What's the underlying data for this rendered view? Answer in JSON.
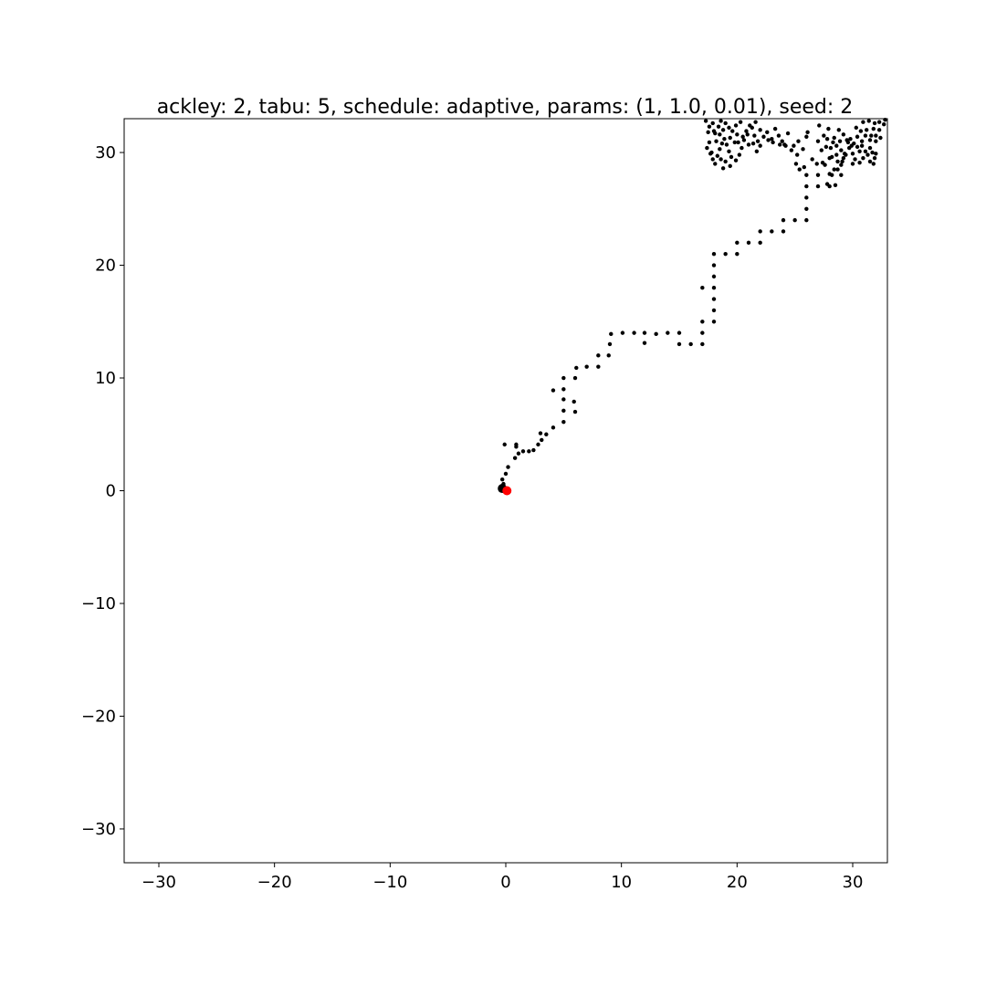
{
  "chart_data": {
    "type": "scatter",
    "title": "ackley: 2, tabu: 5, schedule: adaptive, params: (1, 1.0, 0.01), seed: 2",
    "xlabel": "",
    "ylabel": "",
    "xlim": [
      -33,
      33
    ],
    "ylim": [
      -33,
      33
    ],
    "grid": false,
    "x_ticks": [
      -30,
      -20,
      -10,
      0,
      10,
      20,
      30
    ],
    "y_ticks": [
      -30,
      -20,
      -10,
      0,
      10,
      20,
      30
    ],
    "x_tick_labels": [
      "−30",
      "−20",
      "−10",
      "0",
      "10",
      "20",
      "30"
    ],
    "y_tick_labels": [
      "−30",
      "−20",
      "−10",
      "0",
      "10",
      "20",
      "30"
    ],
    "colors": {
      "path": "#000000",
      "start": "#000000",
      "optimum": "#ff0000"
    },
    "series": [
      {
        "values": [
          [
            -0.3,
            0.3
          ],
          [
            -0.2,
            0.6
          ],
          [
            -0.3,
            1.0
          ],
          [
            0,
            1.5
          ],
          [
            0.2,
            2.1
          ],
          [
            -0.1,
            4.1
          ],
          [
            0.9,
            3.9
          ],
          [
            0.9,
            4.1
          ],
          [
            0.8,
            2.9
          ],
          [
            1.1,
            3.3
          ],
          [
            1.5,
            3.5
          ],
          [
            2.0,
            3.5
          ],
          [
            2.4,
            3.6
          ],
          [
            2.8,
            4.1
          ],
          [
            3.1,
            4.5
          ],
          [
            3.5,
            5.0
          ],
          [
            3.0,
            5.1
          ],
          [
            4.1,
            5.6
          ],
          [
            5.0,
            6.1
          ],
          [
            5.0,
            7.1
          ],
          [
            6.0,
            7.0
          ],
          [
            5.9,
            7.9
          ],
          [
            5.0,
            8.1
          ],
          [
            4.1,
            8.9
          ],
          [
            5.0,
            9.0
          ],
          [
            5.0,
            10.0
          ],
          [
            6.0,
            10.0
          ],
          [
            6.1,
            10.9
          ],
          [
            7.0,
            11.0
          ],
          [
            8.0,
            11.0
          ],
          [
            8.0,
            12.0
          ],
          [
            8.9,
            12.0
          ],
          [
            9.0,
            13.0
          ],
          [
            9.1,
            13.9
          ],
          [
            10.1,
            14.0
          ],
          [
            11.1,
            14.0
          ],
          [
            12.0,
            14.0
          ],
          [
            12.0,
            13.1
          ],
          [
            13.0,
            13.9
          ],
          [
            14.0,
            14.0
          ],
          [
            15.0,
            14.0
          ],
          [
            15.0,
            13.0
          ],
          [
            16.0,
            13.0
          ],
          [
            17.0,
            13.0
          ],
          [
            17.0,
            14.0
          ],
          [
            17.0,
            15.0
          ],
          [
            18.0,
            15.0
          ],
          [
            18.0,
            16.0
          ],
          [
            18.0,
            17.0
          ],
          [
            18.0,
            18.0
          ],
          [
            17.0,
            18.0
          ],
          [
            18.0,
            19.0
          ],
          [
            18.0,
            20.0
          ],
          [
            18.0,
            21.0
          ],
          [
            19.0,
            21.0
          ],
          [
            20.0,
            21.0
          ],
          [
            20.0,
            22.0
          ],
          [
            21.0,
            22.0
          ],
          [
            22.0,
            22.0
          ],
          [
            22.0,
            23.0
          ],
          [
            23.0,
            23.0
          ],
          [
            24.0,
            23.0
          ],
          [
            24.0,
            24.0
          ],
          [
            25.0,
            24.0
          ],
          [
            26.0,
            24.0
          ],
          [
            26.0,
            25.0
          ],
          [
            26.0,
            26.0
          ],
          [
            26.0,
            27.0
          ],
          [
            27.0,
            27.0
          ],
          [
            28.0,
            27.0
          ],
          [
            28.5,
            27.1
          ],
          [
            26.0,
            28.0
          ],
          [
            27.0,
            28.0
          ],
          [
            28.0,
            28.1
          ],
          [
            29.0,
            28.0
          ],
          [
            27.6,
            28.9
          ],
          [
            28.4,
            28.5
          ],
          [
            28.7,
            29.2
          ],
          [
            28.2,
            29.6
          ],
          [
            27.4,
            29.1
          ],
          [
            29.2,
            29.5
          ],
          [
            25.4,
            28.5
          ],
          [
            25.1,
            29.0
          ],
          [
            25.8,
            28.7
          ],
          [
            26.5,
            29.4
          ],
          [
            26.9,
            29.0
          ],
          [
            24.1,
            30.7
          ],
          [
            24.9,
            30.6
          ],
          [
            25.3,
            31.0
          ],
          [
            25.7,
            30.3
          ],
          [
            25.2,
            29.8
          ],
          [
            26.1,
            31.8
          ],
          [
            26.0,
            31.4
          ],
          [
            27.1,
            32.4
          ],
          [
            27.5,
            31.5
          ],
          [
            27.8,
            31.2
          ],
          [
            28.3,
            30.9
          ],
          [
            28.6,
            30.6
          ],
          [
            29.0,
            30.2
          ],
          [
            29.3,
            29.9
          ],
          [
            29.7,
            30.4
          ],
          [
            30.0,
            29.9
          ],
          [
            30.0,
            29.0
          ],
          [
            30.4,
            30.5
          ],
          [
            30.8,
            30.6
          ],
          [
            31.1,
            30.1
          ],
          [
            30.9,
            29.5
          ],
          [
            30.6,
            29.1
          ],
          [
            31.5,
            29.2
          ],
          [
            31.8,
            29.0
          ],
          [
            31.7,
            30.0
          ],
          [
            31.3,
            29.8
          ],
          [
            32.0,
            29.9
          ],
          [
            31.9,
            29.5
          ],
          [
            32.0,
            31.0
          ],
          [
            31.5,
            31.1
          ],
          [
            31.1,
            31.5
          ],
          [
            30.7,
            31.9
          ],
          [
            30.4,
            31.4
          ],
          [
            30.1,
            30.8
          ],
          [
            29.5,
            31.1
          ],
          [
            29.2,
            31.6
          ],
          [
            28.8,
            32.0
          ],
          [
            28.4,
            31.3
          ],
          [
            27.9,
            32.1
          ],
          [
            28.1,
            30.4
          ],
          [
            28.9,
            31.0
          ],
          [
            29.8,
            31.2
          ],
          [
            30.3,
            32.2
          ],
          [
            30.9,
            32.7
          ],
          [
            31.4,
            32.8
          ],
          [
            31.9,
            32.6
          ],
          [
            32.3,
            32.7
          ],
          [
            32.7,
            32.5
          ],
          [
            32.8,
            32.9
          ],
          [
            32.3,
            32.0
          ],
          [
            31.8,
            32.1
          ],
          [
            31.6,
            31.5
          ],
          [
            30.6,
            30.1
          ],
          [
            29.9,
            30.6
          ],
          [
            29.4,
            29.8
          ],
          [
            29.1,
            29.2
          ],
          [
            28.7,
            28.5
          ],
          [
            28.2,
            28.0
          ],
          [
            27.8,
            27.2
          ],
          [
            17.3,
            32.8
          ],
          [
            17.6,
            32.3
          ],
          [
            17.5,
            31.8
          ],
          [
            17.6,
            30.9
          ],
          [
            17.4,
            30.4
          ],
          [
            17.8,
            30.0
          ],
          [
            17.9,
            29.4
          ],
          [
            18.1,
            29.0
          ],
          [
            18.3,
            29.7
          ],
          [
            18.5,
            30.3
          ],
          [
            18.7,
            30.8
          ],
          [
            18.9,
            31.2
          ],
          [
            18.5,
            31.6
          ],
          [
            18.1,
            31.7
          ],
          [
            18.4,
            32.3
          ],
          [
            18.6,
            32.8
          ],
          [
            19.0,
            32.6
          ],
          [
            19.3,
            32.2
          ],
          [
            19.6,
            31.9
          ],
          [
            19.4,
            31.3
          ],
          [
            19.1,
            30.7
          ],
          [
            19.3,
            30.1
          ],
          [
            19.5,
            29.6
          ],
          [
            19.0,
            29.2
          ],
          [
            18.8,
            28.6
          ],
          [
            19.4,
            28.8
          ],
          [
            19.9,
            29.3
          ],
          [
            20.2,
            29.8
          ],
          [
            20.4,
            30.4
          ],
          [
            20.1,
            30.9
          ],
          [
            20.5,
            31.4
          ],
          [
            20.8,
            31.9
          ],
          [
            21.1,
            32.4
          ],
          [
            21.6,
            32.7
          ],
          [
            21.3,
            32.2
          ],
          [
            20.9,
            31.6
          ],
          [
            20.6,
            31.1
          ],
          [
            21.0,
            30.7
          ],
          [
            21.4,
            30.8
          ],
          [
            21.8,
            31.0
          ],
          [
            21.5,
            31.5
          ],
          [
            22.0,
            32.0
          ],
          [
            22.3,
            31.4
          ],
          [
            22.0,
            30.6
          ],
          [
            21.7,
            30.1
          ],
          [
            18.0,
            31.9
          ],
          [
            17.9,
            32.6
          ],
          [
            18.2,
            31.0
          ],
          [
            18.8,
            32.0
          ],
          [
            19.9,
            32.4
          ],
          [
            20.3,
            32.7
          ],
          [
            20.0,
            31.6
          ],
          [
            19.8,
            30.9
          ],
          [
            18.6,
            29.4
          ],
          [
            17.7,
            29.9
          ],
          [
            22.6,
            31.8
          ],
          [
            23.0,
            31.2
          ],
          [
            23.3,
            32.1
          ],
          [
            23.6,
            31.5
          ],
          [
            23.9,
            31.0
          ],
          [
            24.2,
            30.6
          ],
          [
            24.4,
            31.7
          ],
          [
            23.7,
            30.7
          ],
          [
            23.1,
            30.9
          ],
          [
            22.7,
            31.1
          ],
          [
            24.7,
            30.2
          ],
          [
            27.3,
            30.2
          ],
          [
            27.0,
            31.0
          ],
          [
            28.6,
            29.8
          ],
          [
            29.6,
            30.9
          ],
          [
            31.2,
            32.0
          ],
          [
            32.4,
            31.3
          ],
          [
            30.2,
            29.4
          ],
          [
            31.5,
            30.4
          ],
          [
            28.0,
            29.5
          ],
          [
            32.0,
            31.5
          ],
          [
            30.8,
            31.0
          ],
          [
            29.0,
            28.9
          ],
          [
            27.7,
            30.5
          ]
        ]
      }
    ],
    "start_point": [
      -0.3,
      0.2
    ],
    "optimum_point": [
      0.1,
      0.0
    ]
  }
}
